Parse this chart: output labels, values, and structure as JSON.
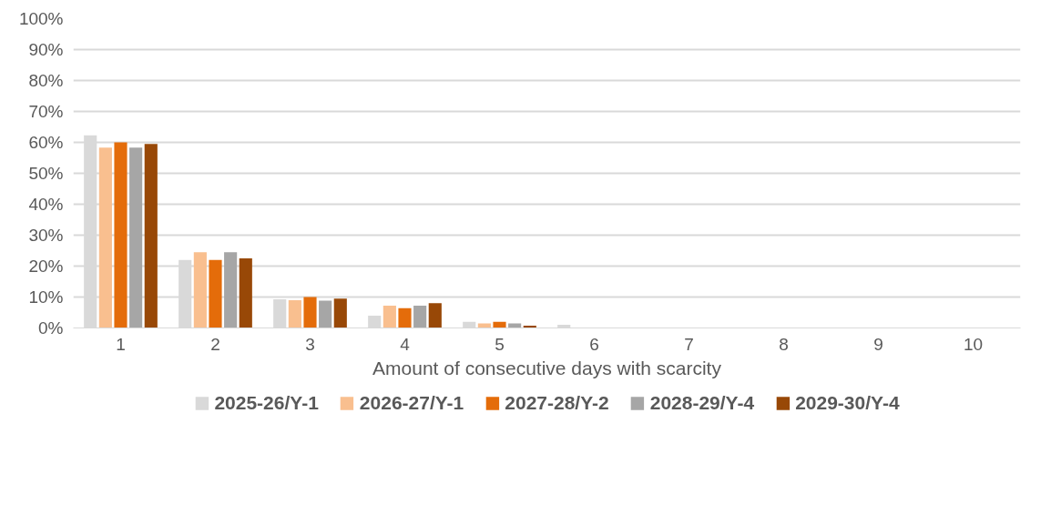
{
  "chart_data": {
    "type": "bar",
    "xlabel": "Amount of consecutive days with scarcity",
    "categories": [
      "1",
      "2",
      "3",
      "4",
      "5",
      "6",
      "7",
      "8",
      "9",
      "10"
    ],
    "series": [
      {
        "name": "2025-26/Y-1",
        "color": "#d9d9d9",
        "values": [
          0.623,
          0.22,
          0.093,
          0.04,
          0.02,
          0.01,
          0,
          0,
          0,
          0
        ]
      },
      {
        "name": "2026-27/Y-1",
        "color": "#f9bf8f",
        "values": [
          0.583,
          0.245,
          0.09,
          0.072,
          0.015,
          0,
          0,
          0,
          0,
          0
        ]
      },
      {
        "name": "2027-28/Y-2",
        "color": "#e46c0a",
        "values": [
          0.6,
          0.22,
          0.1,
          0.064,
          0.02,
          0,
          0,
          0,
          0,
          0
        ]
      },
      {
        "name": "2028-29/Y-4",
        "color": "#a6a6a6",
        "values": [
          0.583,
          0.245,
          0.088,
          0.072,
          0.015,
          0,
          0,
          0,
          0,
          0
        ]
      },
      {
        "name": "2029-30/Y-4",
        "color": "#984807",
        "values": [
          0.595,
          0.225,
          0.095,
          0.08,
          0.007,
          0,
          0,
          0,
          0,
          0
        ]
      }
    ],
    "ylim": [
      0,
      1
    ],
    "yticks": [
      {
        "value": 0,
        "label": "0%"
      },
      {
        "value": 0.1,
        "label": "10%"
      },
      {
        "value": 0.2,
        "label": "20%"
      },
      {
        "value": 0.3,
        "label": "30%"
      },
      {
        "value": 0.4,
        "label": "40%"
      },
      {
        "value": 0.5,
        "label": "50%"
      },
      {
        "value": 0.6,
        "label": "60%"
      },
      {
        "value": 0.7,
        "label": "70%"
      },
      {
        "value": 0.8,
        "label": "80%"
      },
      {
        "value": 0.9,
        "label": "90%"
      },
      {
        "value": 1,
        "label": "100%"
      }
    ],
    "grid": "y",
    "legend": "bottom"
  }
}
